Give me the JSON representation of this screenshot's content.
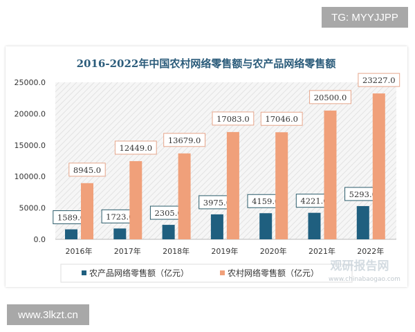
{
  "tg_label": "TG: MYYJJPP",
  "site_label": "www.3lkzt.cn",
  "watermark": {
    "name": "观研报告网",
    "url": "www.chinabaogao.com"
  },
  "chart_data": {
    "type": "bar",
    "title": "2016-2022年中国农村网络零售额与农产品网络零售额",
    "categories": [
      "2016年",
      "2017年",
      "2018年",
      "2019年",
      "2020年",
      "2021年",
      "2022年"
    ],
    "series": [
      {
        "name": "农产品网络零售额（亿元）",
        "color": "#1f5f7f",
        "values": [
          1589.0,
          1723.0,
          2305.0,
          3975.0,
          4159.0,
          4221.0,
          5293.0
        ]
      },
      {
        "name": "农村网络零售额（亿元）",
        "color": "#f0a07a",
        "values": [
          8945.0,
          12449.0,
          13679.0,
          17083.0,
          17046.0,
          20500.0,
          23227.0
        ]
      }
    ],
    "ylim": [
      0,
      25000
    ],
    "yticks": [
      "0.0",
      "5000.0",
      "10000.0",
      "15000.0",
      "20000.0",
      "25000.0"
    ],
    "legend": "bottom",
    "grid": false
  }
}
